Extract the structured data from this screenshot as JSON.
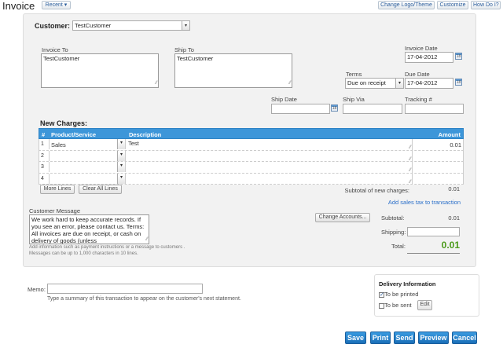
{
  "header": {
    "title": "Invoice",
    "recent_label": "Recent ▾",
    "change_logo_label": "Change Logo/Theme",
    "customize_label": "Customize",
    "how_do_i_label": "How Do I?"
  },
  "customer": {
    "label": "Customer:",
    "value": "TestCustomer"
  },
  "invoice_to": {
    "label": "Invoice To",
    "value": "TestCustomer"
  },
  "ship_to": {
    "label": "Ship To",
    "value": "TestCustomer"
  },
  "invoice_date": {
    "label": "Invoice Date",
    "value": "17-04-2012"
  },
  "terms": {
    "label": "Terms",
    "value": "Due on receipt"
  },
  "due_date": {
    "label": "Due Date",
    "value": "17-04-2012"
  },
  "ship_date": {
    "label": "Ship Date",
    "value": ""
  },
  "ship_via": {
    "label": "Ship Via",
    "value": ""
  },
  "tracking": {
    "label": "Tracking #",
    "value": ""
  },
  "charges": {
    "title": "New Charges:",
    "columns": [
      "#",
      "Product/Service",
      "Description",
      "Amount"
    ],
    "rows": [
      {
        "n": "1",
        "product": "Sales",
        "description": "Test",
        "amount": "0.01"
      },
      {
        "n": "2",
        "product": "",
        "description": "",
        "amount": ""
      },
      {
        "n": "3",
        "product": "",
        "description": "",
        "amount": ""
      },
      {
        "n": "4",
        "product": "",
        "description": "",
        "amount": ""
      }
    ],
    "more_lines_label": "More Lines",
    "clear_lines_label": "Clear All Lines",
    "subtotal_label": "Subtotal of new charges:",
    "subtotal_value": "0.01",
    "sales_tax_link": "Add sales tax to transaction"
  },
  "message": {
    "label": "Customer Message",
    "value": "We work hard to keep accurate records. If you see an error, please contact us. Terms: All invoices are due on receipt, or cash on delivery of goods (unless",
    "help1": "Add information such as payment instructions or a message to customers .",
    "help2": "Messages can be up to 1,000 characters in 10 lines."
  },
  "totals": {
    "change_accounts_label": "Change Accounts...",
    "subtotal_label": "Subtotal:",
    "subtotal_value": "0.01",
    "shipping_label": "Shipping:",
    "shipping_value": "",
    "total_label": "Total:",
    "total_value": "0.01",
    "total_color": "#4a9a1a"
  },
  "memo": {
    "label": "Memo:",
    "value": "",
    "help": "Type a summary of this transaction to appear on the customer's next statement."
  },
  "delivery": {
    "title": "Delivery Information",
    "to_be_printed": "To be printed",
    "to_be_printed_checked": true,
    "to_be_sent": "To be sent",
    "to_be_sent_checked": false,
    "edit_label": "Edit"
  },
  "actions": {
    "save": "Save",
    "print": "Print",
    "send": "Send",
    "preview": "Preview",
    "cancel": "Cancel"
  }
}
